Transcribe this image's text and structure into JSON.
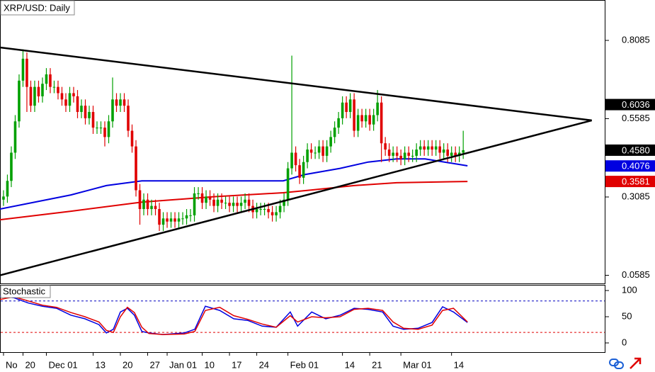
{
  "chart_data": [
    {
      "type": "candlestick",
      "title": "XRP/USD: Daily",
      "categories": [
        "No",
        null,
        null,
        null,
        null,
        "20",
        null,
        null,
        null,
        null,
        null,
        "Dec 01",
        null,
        null,
        null,
        null,
        null,
        null,
        null,
        null,
        null,
        null,
        null,
        "13",
        null,
        null,
        null,
        null,
        null,
        null,
        "20",
        null,
        null,
        null,
        null,
        null,
        null,
        "27",
        null,
        null,
        null,
        null,
        "Jan 01",
        null,
        null,
        null,
        null,
        null,
        null,
        null,
        null,
        "10",
        null,
        null,
        null,
        null,
        null,
        null,
        "17",
        null,
        null,
        null,
        null,
        null,
        null,
        "24",
        null,
        null,
        null,
        null,
        null,
        null,
        null,
        "Feb 01",
        null,
        null,
        null,
        null,
        null,
        null,
        null,
        null,
        null,
        null,
        null,
        null,
        null,
        "14",
        null,
        null,
        null,
        null,
        null,
        null,
        "21",
        null,
        null,
        null,
        null,
        null,
        null,
        null,
        "Mar 01",
        null,
        null,
        null,
        null,
        null,
        null,
        null,
        null,
        null,
        null,
        null,
        null,
        "14",
        null,
        null,
        null
      ],
      "open": [
        0.3,
        0.31,
        0.36,
        0.45,
        0.55,
        0.68,
        0.75,
        0.66,
        0.6,
        0.66,
        0.63,
        0.67,
        0.7,
        0.66,
        0.66,
        0.64,
        0.62,
        0.6,
        0.64,
        0.63,
        0.58,
        0.6,
        0.56,
        0.58,
        0.53,
        0.53,
        0.53,
        0.5,
        0.55,
        0.62,
        0.6,
        0.62,
        0.6,
        0.52,
        0.47,
        0.33,
        0.27,
        0.3,
        0.27,
        0.28,
        0.27,
        0.22,
        0.24,
        0.23,
        0.24,
        0.23,
        0.24,
        0.24,
        0.25,
        0.25,
        0.32,
        0.32,
        0.29,
        0.31,
        0.3,
        0.28,
        0.3,
        0.29,
        0.29,
        0.28,
        0.29,
        0.28,
        0.29,
        0.3,
        0.28,
        0.26,
        0.27,
        0.27,
        0.27,
        0.26,
        0.25,
        0.26,
        0.28,
        0.3,
        0.4,
        0.45,
        0.41,
        0.37,
        0.42,
        0.46,
        0.45,
        0.45,
        0.47,
        0.44,
        0.47,
        0.5,
        0.53,
        0.56,
        0.61,
        0.58,
        0.62,
        0.52,
        0.57,
        0.55,
        0.57,
        0.54,
        0.57,
        0.61,
        0.48,
        0.46,
        0.44,
        0.45,
        0.44,
        0.43,
        0.45,
        0.44,
        0.44,
        0.46,
        0.47,
        0.46,
        0.47,
        0.46,
        0.47,
        0.45,
        0.46,
        0.44,
        0.45,
        0.44,
        0.45
      ],
      "high": [
        0.33,
        0.38,
        0.47,
        0.57,
        0.7,
        0.78,
        0.77,
        0.68,
        0.68,
        0.68,
        0.69,
        0.72,
        0.72,
        0.68,
        0.68,
        0.66,
        0.64,
        0.66,
        0.66,
        0.65,
        0.62,
        0.62,
        0.6,
        0.6,
        0.55,
        0.55,
        0.55,
        0.57,
        0.69,
        0.64,
        0.64,
        0.64,
        0.62,
        0.54,
        0.49,
        0.35,
        0.32,
        0.32,
        0.3,
        0.3,
        0.29,
        0.26,
        0.26,
        0.26,
        0.26,
        0.26,
        0.26,
        0.27,
        0.27,
        0.34,
        0.34,
        0.34,
        0.33,
        0.33,
        0.32,
        0.32,
        0.32,
        0.31,
        0.31,
        0.31,
        0.31,
        0.31,
        0.32,
        0.32,
        0.3,
        0.29,
        0.29,
        0.29,
        0.29,
        0.28,
        0.28,
        0.3,
        0.32,
        0.42,
        0.76,
        0.47,
        0.43,
        0.44,
        0.48,
        0.48,
        0.47,
        0.49,
        0.49,
        0.49,
        0.52,
        0.55,
        0.58,
        0.63,
        0.63,
        0.64,
        0.64,
        0.59,
        0.59,
        0.59,
        0.59,
        0.59,
        0.65,
        0.63,
        0.5,
        0.48,
        0.47,
        0.47,
        0.46,
        0.47,
        0.47,
        0.46,
        0.48,
        0.49,
        0.49,
        0.49,
        0.49,
        0.49,
        0.49,
        0.48,
        0.48,
        0.47,
        0.47,
        0.47,
        0.52
      ],
      "low": [
        0.28,
        0.29,
        0.34,
        0.43,
        0.53,
        0.66,
        0.58,
        0.58,
        0.58,
        0.61,
        0.61,
        0.65,
        0.64,
        0.64,
        0.62,
        0.6,
        0.58,
        0.58,
        0.61,
        0.56,
        0.56,
        0.54,
        0.54,
        0.51,
        0.51,
        0.51,
        0.47,
        0.48,
        0.53,
        0.58,
        0.58,
        0.58,
        0.5,
        0.45,
        0.31,
        0.22,
        0.25,
        0.25,
        0.25,
        0.25,
        0.2,
        0.2,
        0.21,
        0.21,
        0.21,
        0.21,
        0.22,
        0.22,
        0.23,
        0.23,
        0.3,
        0.27,
        0.27,
        0.28,
        0.26,
        0.26,
        0.27,
        0.27,
        0.26,
        0.26,
        0.26,
        0.26,
        0.27,
        0.26,
        0.24,
        0.24,
        0.25,
        0.25,
        0.24,
        0.23,
        0.23,
        0.24,
        0.26,
        0.28,
        0.38,
        0.39,
        0.35,
        0.35,
        0.4,
        0.43,
        0.43,
        0.43,
        0.42,
        0.42,
        0.45,
        0.48,
        0.51,
        0.54,
        0.56,
        0.56,
        0.5,
        0.5,
        0.53,
        0.53,
        0.52,
        0.52,
        0.55,
        0.42,
        0.44,
        0.42,
        0.42,
        0.42,
        0.41,
        0.41,
        0.42,
        0.42,
        0.42,
        0.44,
        0.44,
        0.44,
        0.44,
        0.44,
        0.43,
        0.43,
        0.42,
        0.42,
        0.42,
        0.42,
        0.43
      ],
      "close": [
        0.31,
        0.36,
        0.45,
        0.55,
        0.68,
        0.75,
        0.66,
        0.6,
        0.66,
        0.63,
        0.67,
        0.7,
        0.66,
        0.66,
        0.64,
        0.62,
        0.6,
        0.64,
        0.63,
        0.58,
        0.6,
        0.56,
        0.58,
        0.53,
        0.53,
        0.53,
        0.5,
        0.55,
        0.62,
        0.6,
        0.62,
        0.6,
        0.52,
        0.47,
        0.33,
        0.27,
        0.3,
        0.27,
        0.28,
        0.27,
        0.22,
        0.24,
        0.23,
        0.24,
        0.23,
        0.24,
        0.24,
        0.25,
        0.25,
        0.32,
        0.32,
        0.29,
        0.31,
        0.3,
        0.28,
        0.3,
        0.29,
        0.29,
        0.28,
        0.29,
        0.28,
        0.29,
        0.3,
        0.28,
        0.26,
        0.27,
        0.27,
        0.27,
        0.26,
        0.25,
        0.26,
        0.28,
        0.3,
        0.4,
        0.45,
        0.41,
        0.37,
        0.42,
        0.46,
        0.45,
        0.45,
        0.47,
        0.44,
        0.47,
        0.5,
        0.53,
        0.56,
        0.61,
        0.58,
        0.62,
        0.52,
        0.57,
        0.55,
        0.57,
        0.54,
        0.57,
        0.61,
        0.48,
        0.46,
        0.44,
        0.45,
        0.44,
        0.43,
        0.45,
        0.44,
        0.44,
        0.46,
        0.47,
        0.46,
        0.47,
        0.46,
        0.47,
        0.45,
        0.46,
        0.44,
        0.45,
        0.44,
        0.45,
        0.458
      ],
      "up_color": "#00a000",
      "down_color": "#e00000",
      "xlim": [
        -0.9,
        154.5
      ],
      "ylim": [
        0.0325,
        0.9375
      ],
      "yticks": [
        0.8085,
        0.5585,
        0.3085,
        0.0585
      ],
      "lines": [
        {
          "color": "#0000e0",
          "x": [
            -0.9,
            17.3,
            26.4,
            35.5,
            53.6,
            71.8,
            77.3,
            86.4,
            93.6,
            100.9,
            108.2,
            119.1
          ],
          "values": [
            0.27,
            0.315,
            0.345,
            0.36,
            0.36,
            0.36,
            0.38,
            0.4,
            0.42,
            0.43,
            0.43,
            0.408
          ]
        },
        {
          "color": "#e00000",
          "x": [
            -0.9,
            17.3,
            35.5,
            53.6,
            71.8,
            79.1,
            90,
            100.9,
            119.1
          ],
          "values": [
            0.236,
            0.263,
            0.292,
            0.309,
            0.322,
            0.331,
            0.345,
            0.354,
            0.358
          ]
        }
      ],
      "trendlines": [
        {
          "color": "#000000",
          "x": [
            -0.9,
            151
          ],
          "values": [
            0.786,
            0.553
          ]
        },
        {
          "color": "#000000",
          "x": [
            -0.9,
            151
          ],
          "values": [
            0.0585,
            0.553
          ]
        }
      ],
      "price_labels": [
        {
          "value": 0.6036,
          "color": "#000000"
        },
        {
          "value": {
            "value": 0.458,
            "label": "0.4580"
          },
          "color": "#000000"
        },
        {
          "value": 0.4076,
          "color": "#0000e0"
        },
        {
          "value": 0.3581,
          "color": "#e00000"
        }
      ]
    },
    {
      "type": "line",
      "title": "Stochastic",
      "xlim": [
        -0.9,
        154.5
      ],
      "ylim": [
        -17.6,
        110.8
      ],
      "yticks": [
        100,
        50,
        0
      ],
      "levels": [
        {
          "value": 80,
          "color": "#0000c0"
        },
        {
          "value": 20,
          "color": "#e00000"
        }
      ],
      "series": [
        {
          "color": "#0000e0",
          "x": [
            -0.9,
            2.7,
            6.4,
            10,
            13.6,
            17.3,
            20.9,
            24.5,
            26.4,
            28.2,
            30,
            31.8,
            33.6,
            35.5,
            37.3,
            40.9,
            46.4,
            49.1,
            51.8,
            55.5,
            59.1,
            62.7,
            66.4,
            70,
            73.6,
            75.5,
            79.1,
            82.7,
            86.4,
            90,
            93.6,
            97.3,
            100,
            102.7,
            106.4,
            110,
            112.7,
            115.5,
            119.1
          ],
          "values": [
            89,
            86,
            76,
            70,
            66,
            53,
            46,
            35,
            19,
            26,
            59,
            66,
            53,
            22,
            19,
            16,
            19,
            26,
            70,
            62,
            46,
            43,
            32,
            30,
            59,
            32,
            59,
            46,
            53,
            66,
            64,
            59,
            32,
            26,
            28,
            39,
            69,
            59,
            39
          ]
        },
        {
          "color": "#e00000",
          "x": [
            -0.9,
            2.7,
            6.4,
            10,
            13.6,
            17.3,
            20.9,
            24.5,
            26.4,
            28.2,
            30,
            31.8,
            33.6,
            35.5,
            37.3,
            40.9,
            46.4,
            49.1,
            51.8,
            55.5,
            59.1,
            62.7,
            66.4,
            70,
            73.6,
            75.5,
            79.1,
            82.7,
            86.4,
            90,
            93.6,
            97.3,
            100,
            102.7,
            106.4,
            110,
            112.7,
            115.5,
            119.1
          ],
          "values": [
            83,
            88,
            80,
            72,
            68,
            58,
            50,
            40,
            24,
            20,
            50,
            68,
            58,
            30,
            18,
            16,
            17,
            22,
            62,
            68,
            52,
            45,
            36,
            30,
            52,
            40,
            50,
            48,
            50,
            64,
            66,
            62,
            40,
            28,
            26,
            34,
            62,
            66,
            40
          ]
        }
      ]
    }
  ]
}
